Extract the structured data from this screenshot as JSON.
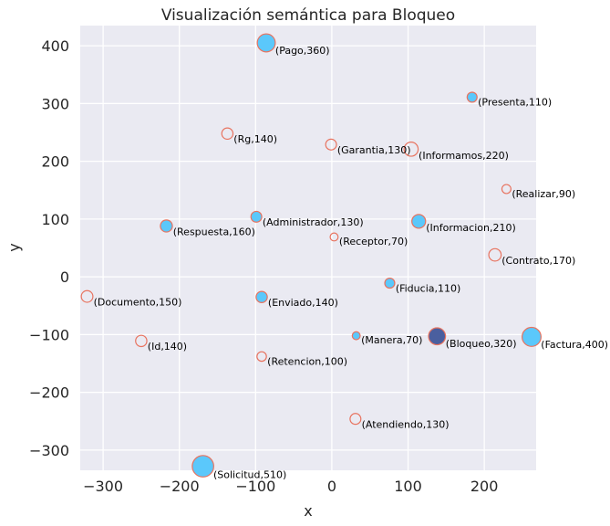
{
  "chart_data": {
    "type": "scatter",
    "title": "Visualización semántica para Bloqueo",
    "xlabel": "x",
    "ylabel": "y",
    "xlim": [
      -330,
      268
    ],
    "ylim": [
      -335,
      435
    ],
    "xticks": [
      -300,
      -200,
      -100,
      0,
      100,
      200
    ],
    "yticks": [
      -300,
      -200,
      -100,
      0,
      100,
      200,
      300,
      400
    ],
    "xtick_labels": [
      "−300",
      "−200",
      "−100",
      "0",
      "100",
      "200"
    ],
    "ytick_labels": [
      "−300",
      "−200",
      "−100",
      "0",
      "100",
      "200",
      "300",
      "400"
    ],
    "grid": true,
    "colors": {
      "background": "#eaeaf2",
      "filled": "#5bc8fb",
      "outline": "#e8735f",
      "highlight": "#4a5f9f",
      "grid": "#ffffff"
    },
    "points": [
      {
        "label": "(Pago,360)",
        "x": -86,
        "y": 405,
        "size": 360,
        "filled": true
      },
      {
        "label": "(Presenta,110)",
        "x": 184,
        "y": 311,
        "size": 110,
        "filled": true
      },
      {
        "label": "(Rg,140)",
        "x": -137,
        "y": 248,
        "size": 140,
        "filled": false
      },
      {
        "label": "(Garantia,130)",
        "x": -1,
        "y": 229,
        "size": 130,
        "filled": false
      },
      {
        "label": "(Informamos,220)",
        "x": 104,
        "y": 221,
        "size": 220,
        "filled": false
      },
      {
        "label": "(Realizar,90)",
        "x": 229,
        "y": 152,
        "size": 90,
        "filled": false
      },
      {
        "label": "(Administrador,130)",
        "x": -99,
        "y": 104,
        "size": 130,
        "filled": true
      },
      {
        "label": "(Respuesta,160)",
        "x": -217,
        "y": 88,
        "size": 160,
        "filled": true
      },
      {
        "label": "(Informacion,210)",
        "x": 114,
        "y": 96,
        "size": 210,
        "filled": true
      },
      {
        "label": "(Receptor,70)",
        "x": 3,
        "y": 69,
        "size": 70,
        "filled": false
      },
      {
        "label": "(Contrato,170)",
        "x": 214,
        "y": 38,
        "size": 170,
        "filled": false
      },
      {
        "label": "(Fiducia,110)",
        "x": 76,
        "y": -11,
        "size": 110,
        "filled": true
      },
      {
        "label": "(Documento,150)",
        "x": -321,
        "y": -34,
        "size": 150,
        "filled": false
      },
      {
        "label": "(Enviado,140)",
        "x": -92,
        "y": -35,
        "size": 140,
        "filled": true
      },
      {
        "label": "(Manera,70)",
        "x": 32,
        "y": -102,
        "size": 70,
        "filled": true
      },
      {
        "label": "(Bloqueo,320)",
        "x": 138,
        "y": -103,
        "size": 320,
        "filled": true,
        "highlight": true
      },
      {
        "label": "(Factura,400)",
        "x": 262,
        "y": -104,
        "size": 400,
        "filled": true
      },
      {
        "label": "(Id,140)",
        "x": -250,
        "y": -111,
        "size": 140,
        "filled": false
      },
      {
        "label": "(Retencion,100)",
        "x": -92,
        "y": -138,
        "size": 100,
        "filled": false
      },
      {
        "label": "(Atendiendo,130)",
        "x": 31,
        "y": -246,
        "size": 130,
        "filled": false
      },
      {
        "label": "(Solicitud,510)",
        "x": -169,
        "y": -328,
        "size": 510,
        "filled": true
      }
    ]
  }
}
